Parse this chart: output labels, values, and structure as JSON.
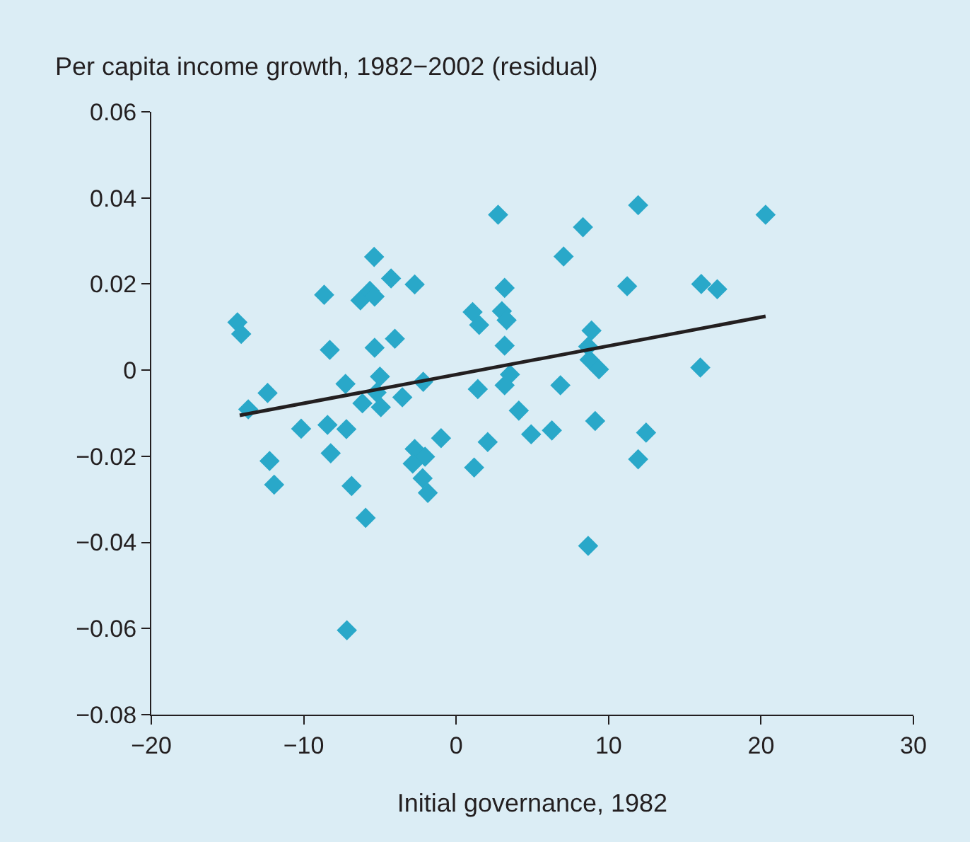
{
  "chart_data": {
    "type": "scatter",
    "xlabel": "Initial governance, 1982",
    "ylabel": "Per capita income growth, 1982−2002 (residual)",
    "xlim": [
      -20,
      30
    ],
    "ylim": [
      -0.08,
      0.06
    ],
    "xticks": [
      {
        "value": -20,
        "label": "−20"
      },
      {
        "value": -10,
        "label": "−10"
      },
      0,
      10,
      20,
      30
    ],
    "yticks": [
      {
        "value": -0.08,
        "label": "−0.08"
      },
      {
        "value": -0.06,
        "label": "−0.06"
      },
      {
        "value": -0.04,
        "label": "−0.04"
      },
      {
        "value": -0.02,
        "label": "−0.02"
      },
      0,
      0.02,
      0.04,
      0.06
    ],
    "grid": false,
    "legend": false,
    "marker": "diamond",
    "series": [
      {
        "color": "#29a8c9",
        "x": [
          -5.38,
          -4.27,
          -2.72,
          -8.66,
          -6.28,
          -5.66,
          -5.35,
          -14.35,
          -14.1,
          -8.29,
          -5.35,
          -4.02,
          -12.37,
          -13.64,
          -7.26,
          -5.0,
          -5.22,
          -6.15,
          -4.94,
          -3.53,
          -2.16,
          -10.17,
          -8.44,
          -7.2,
          -0.99,
          -12.24,
          -8.23,
          -2.72,
          -2.04,
          -2.85,
          -2.2,
          -1.86,
          -11.94,
          -6.86,
          -5.94,
          -7.17,
          2.75,
          11.94,
          20.3,
          8.32,
          7.05,
          3.18,
          11.22,
          16.08,
          17.13,
          1.08,
          3.0,
          3.31,
          1.51,
          3.18,
          8.88,
          8.66,
          8.75,
          9.37,
          3.53,
          3.18,
          1.42,
          6.84,
          16.02,
          4.11,
          9.12,
          4.92,
          6.28,
          12.46,
          2.07,
          11.94,
          1.18,
          8.66
        ],
        "values": [
          0.0263,
          0.0213,
          0.0199,
          0.0175,
          0.0162,
          0.0184,
          0.0171,
          0.0111,
          0.0084,
          0.0047,
          0.0052,
          0.0073,
          -0.0053,
          -0.0091,
          -0.0032,
          -0.0015,
          -0.0052,
          -0.0077,
          -0.0086,
          -0.0063,
          -0.0027,
          -0.0136,
          -0.0127,
          -0.0137,
          -0.0158,
          -0.0211,
          -0.0193,
          -0.0183,
          -0.0201,
          -0.0217,
          -0.0251,
          -0.0285,
          -0.0266,
          -0.0269,
          -0.0343,
          -0.0604,
          0.0361,
          0.0383,
          0.0361,
          0.0332,
          0.0264,
          0.0191,
          0.0195,
          0.02,
          0.0188,
          0.0135,
          0.0137,
          0.0116,
          0.0105,
          0.0057,
          0.0092,
          0.0055,
          0.0024,
          0.0002,
          -0.001,
          -0.0035,
          -0.0044,
          -0.0035,
          0.0006,
          -0.0094,
          -0.0118,
          -0.0149,
          -0.014,
          -0.0145,
          -0.0167,
          -0.0207,
          -0.0226,
          -0.0408
        ]
      },
      {
        "type": "line",
        "color": "#231f20",
        "x": [
          -14.2,
          20.3
        ],
        "values": [
          -0.0105,
          0.0125
        ],
        "marker": "none",
        "line_style": "solid"
      }
    ]
  }
}
